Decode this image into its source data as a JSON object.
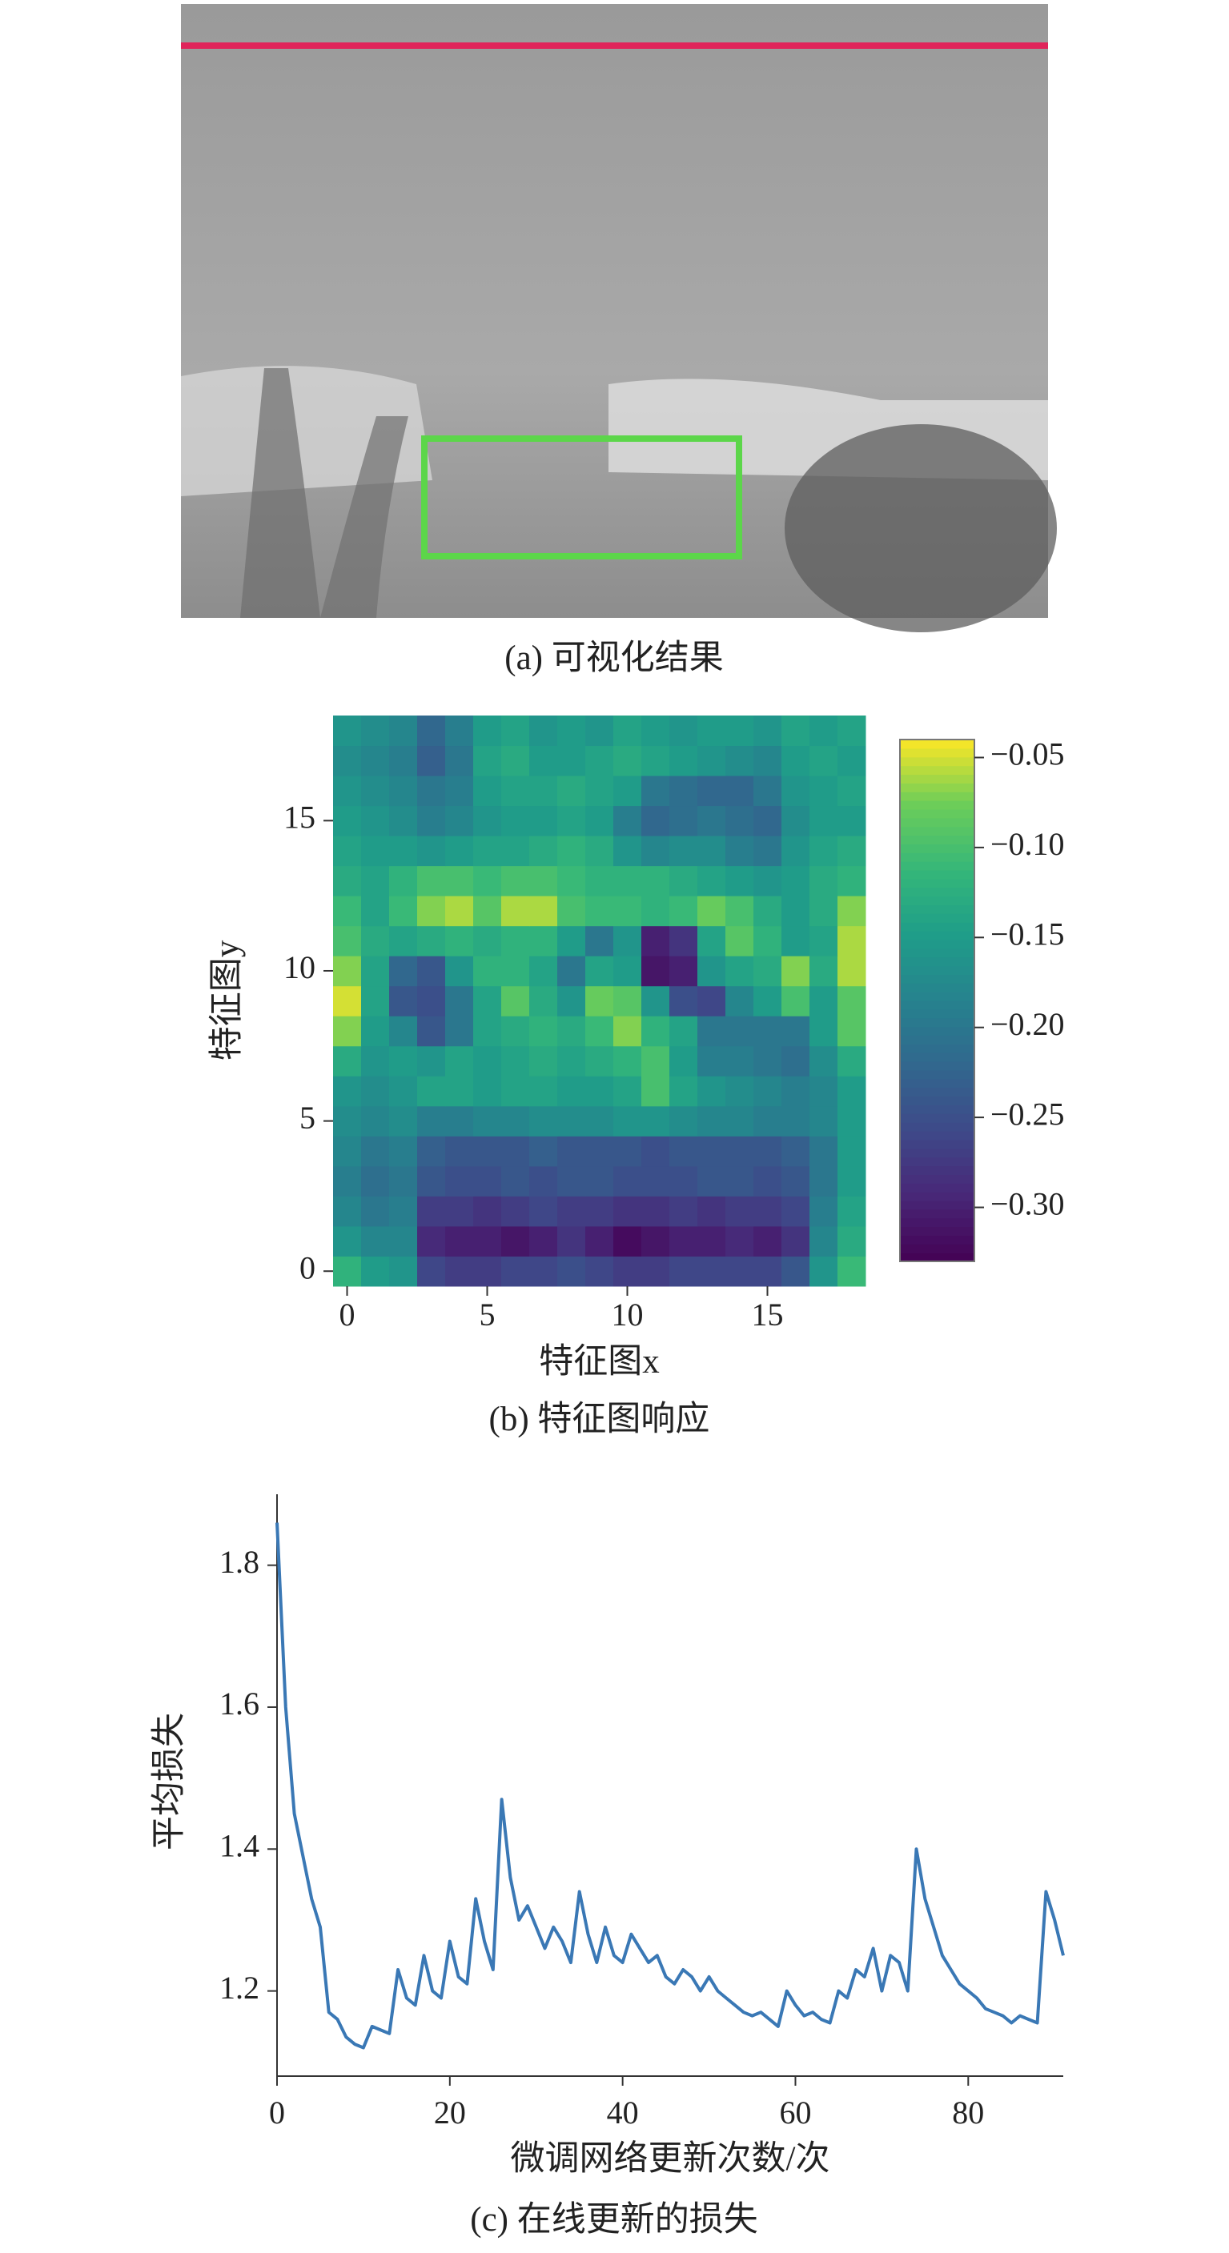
{
  "panel_a": {
    "caption": "(a) 可视化结果"
  },
  "chart_data": [
    {
      "type": "heatmap",
      "caption": "(b) 特征图响应",
      "xlabel": "特征图x",
      "ylabel": "特征图y",
      "colormap": "viridis",
      "x": [
        0,
        1,
        2,
        3,
        4,
        5,
        6,
        7,
        8,
        9,
        10,
        11,
        12,
        13,
        14,
        15,
        16,
        17,
        18
      ],
      "y": [
        0,
        1,
        2,
        3,
        4,
        5,
        6,
        7,
        8,
        9,
        10,
        11,
        12,
        13,
        14,
        15,
        16,
        17,
        18
      ],
      "z": [
        [
          -0.12,
          -0.15,
          -0.16,
          -0.26,
          -0.27,
          -0.27,
          -0.26,
          -0.26,
          -0.25,
          -0.26,
          -0.27,
          -0.27,
          -0.26,
          -0.26,
          -0.26,
          -0.26,
          -0.24,
          -0.16,
          -0.11
        ],
        [
          -0.16,
          -0.18,
          -0.18,
          -0.29,
          -0.3,
          -0.3,
          -0.31,
          -0.3,
          -0.28,
          -0.3,
          -0.32,
          -0.31,
          -0.3,
          -0.3,
          -0.29,
          -0.3,
          -0.28,
          -0.18,
          -0.13
        ],
        [
          -0.18,
          -0.2,
          -0.19,
          -0.27,
          -0.27,
          -0.28,
          -0.27,
          -0.26,
          -0.27,
          -0.27,
          -0.28,
          -0.28,
          -0.27,
          -0.28,
          -0.27,
          -0.27,
          -0.26,
          -0.19,
          -0.14
        ],
        [
          -0.19,
          -0.21,
          -0.2,
          -0.24,
          -0.25,
          -0.25,
          -0.24,
          -0.25,
          -0.24,
          -0.24,
          -0.25,
          -0.25,
          -0.25,
          -0.24,
          -0.24,
          -0.25,
          -0.24,
          -0.2,
          -0.15
        ],
        [
          -0.18,
          -0.2,
          -0.19,
          -0.23,
          -0.24,
          -0.24,
          -0.24,
          -0.23,
          -0.24,
          -0.24,
          -0.24,
          -0.25,
          -0.24,
          -0.24,
          -0.24,
          -0.24,
          -0.23,
          -0.2,
          -0.15
        ],
        [
          -0.17,
          -0.18,
          -0.17,
          -0.19,
          -0.19,
          -0.18,
          -0.18,
          -0.17,
          -0.17,
          -0.17,
          -0.16,
          -0.16,
          -0.17,
          -0.18,
          -0.18,
          -0.19,
          -0.19,
          -0.18,
          -0.15
        ],
        [
          -0.16,
          -0.17,
          -0.16,
          -0.14,
          -0.14,
          -0.15,
          -0.14,
          -0.14,
          -0.15,
          -0.15,
          -0.14,
          -0.1,
          -0.14,
          -0.16,
          -0.17,
          -0.18,
          -0.19,
          -0.18,
          -0.15
        ],
        [
          -0.13,
          -0.16,
          -0.15,
          -0.16,
          -0.14,
          -0.15,
          -0.14,
          -0.13,
          -0.14,
          -0.13,
          -0.12,
          -0.1,
          -0.15,
          -0.19,
          -0.19,
          -0.2,
          -0.21,
          -0.17,
          -0.13
        ],
        [
          -0.07,
          -0.15,
          -0.18,
          -0.24,
          -0.2,
          -0.14,
          -0.13,
          -0.12,
          -0.13,
          -0.11,
          -0.07,
          -0.12,
          -0.14,
          -0.2,
          -0.2,
          -0.2,
          -0.2,
          -0.15,
          -0.09
        ],
        [
          -0.05,
          -0.14,
          -0.24,
          -0.25,
          -0.2,
          -0.14,
          -0.09,
          -0.13,
          -0.16,
          -0.08,
          -0.09,
          -0.16,
          -0.25,
          -0.26,
          -0.18,
          -0.15,
          -0.1,
          -0.15,
          -0.09
        ],
        [
          -0.07,
          -0.14,
          -0.22,
          -0.24,
          -0.16,
          -0.12,
          -0.12,
          -0.14,
          -0.2,
          -0.14,
          -0.15,
          -0.31,
          -0.3,
          -0.16,
          -0.14,
          -0.13,
          -0.07,
          -0.13,
          -0.06
        ],
        [
          -0.1,
          -0.13,
          -0.14,
          -0.13,
          -0.12,
          -0.13,
          -0.12,
          -0.12,
          -0.15,
          -0.2,
          -0.16,
          -0.3,
          -0.28,
          -0.14,
          -0.09,
          -0.12,
          -0.15,
          -0.14,
          -0.06
        ],
        [
          -0.11,
          -0.14,
          -0.11,
          -0.07,
          -0.06,
          -0.09,
          -0.06,
          -0.06,
          -0.1,
          -0.11,
          -0.11,
          -0.12,
          -0.11,
          -0.08,
          -0.1,
          -0.13,
          -0.15,
          -0.13,
          -0.07
        ],
        [
          -0.13,
          -0.14,
          -0.12,
          -0.1,
          -0.1,
          -0.11,
          -0.1,
          -0.1,
          -0.11,
          -0.12,
          -0.12,
          -0.12,
          -0.13,
          -0.14,
          -0.15,
          -0.16,
          -0.15,
          -0.13,
          -0.12
        ],
        [
          -0.14,
          -0.15,
          -0.15,
          -0.16,
          -0.15,
          -0.14,
          -0.14,
          -0.13,
          -0.12,
          -0.13,
          -0.16,
          -0.18,
          -0.17,
          -0.17,
          -0.19,
          -0.2,
          -0.16,
          -0.14,
          -0.13
        ],
        [
          -0.15,
          -0.16,
          -0.17,
          -0.19,
          -0.18,
          -0.16,
          -0.15,
          -0.15,
          -0.14,
          -0.15,
          -0.19,
          -0.22,
          -0.21,
          -0.2,
          -0.21,
          -0.22,
          -0.17,
          -0.15,
          -0.15
        ],
        [
          -0.16,
          -0.17,
          -0.18,
          -0.2,
          -0.19,
          -0.15,
          -0.14,
          -0.14,
          -0.13,
          -0.14,
          -0.15,
          -0.2,
          -0.21,
          -0.22,
          -0.22,
          -0.2,
          -0.16,
          -0.15,
          -0.14
        ],
        [
          -0.17,
          -0.18,
          -0.19,
          -0.23,
          -0.2,
          -0.14,
          -0.13,
          -0.15,
          -0.15,
          -0.14,
          -0.13,
          -0.14,
          -0.15,
          -0.16,
          -0.17,
          -0.18,
          -0.15,
          -0.14,
          -0.15
        ],
        [
          -0.16,
          -0.17,
          -0.18,
          -0.22,
          -0.19,
          -0.15,
          -0.14,
          -0.16,
          -0.15,
          -0.16,
          -0.14,
          -0.15,
          -0.16,
          -0.15,
          -0.15,
          -0.16,
          -0.14,
          -0.15,
          -0.14
        ]
      ],
      "xlim": [
        -0.5,
        18.5
      ],
      "ylim": [
        -0.5,
        18.5
      ],
      "xticks": [
        0,
        5,
        10,
        15
      ],
      "yticks": [
        0,
        5,
        10,
        15
      ],
      "zlim": [
        -0.33,
        -0.04
      ],
      "zticks": [
        {
          "value": -0.05,
          "label": "−0.05"
        },
        {
          "value": -0.1,
          "label": "−0.10"
        },
        {
          "value": -0.15,
          "label": "−0.15"
        },
        {
          "value": -0.2,
          "label": "−0.20"
        },
        {
          "value": -0.25,
          "label": "−0.25"
        },
        {
          "value": -0.3,
          "label": "−0.30"
        }
      ]
    },
    {
      "type": "line",
      "caption": "(c) 在线更新的损失",
      "xlabel": "微调网络更新次数/次",
      "ylabel": "平均损失",
      "color": "#3a78b5",
      "x": [
        0,
        1,
        2,
        3,
        4,
        5,
        6,
        7,
        8,
        9,
        10,
        11,
        12,
        13,
        14,
        15,
        16,
        17,
        18,
        19,
        20,
        21,
        22,
        23,
        24,
        25,
        26,
        27,
        28,
        29,
        30,
        31,
        32,
        33,
        34,
        35,
        36,
        37,
        38,
        39,
        40,
        41,
        42,
        43,
        44,
        45,
        46,
        47,
        48,
        49,
        50,
        51,
        52,
        53,
        54,
        55,
        56,
        57,
        58,
        59,
        60,
        61,
        62,
        63,
        64,
        65,
        66,
        67,
        68,
        69,
        70,
        71,
        72,
        73,
        74,
        75,
        76,
        77,
        78,
        79,
        80,
        81,
        82,
        83,
        84,
        85,
        86,
        87,
        88,
        89,
        90,
        91
      ],
      "values": [
        1.86,
        1.6,
        1.45,
        1.39,
        1.33,
        1.29,
        1.17,
        1.16,
        1.135,
        1.125,
        1.12,
        1.15,
        1.145,
        1.14,
        1.23,
        1.19,
        1.18,
        1.25,
        1.2,
        1.19,
        1.27,
        1.22,
        1.21,
        1.33,
        1.27,
        1.23,
        1.47,
        1.36,
        1.3,
        1.32,
        1.29,
        1.26,
        1.29,
        1.27,
        1.24,
        1.34,
        1.28,
        1.24,
        1.29,
        1.25,
        1.24,
        1.28,
        1.26,
        1.24,
        1.25,
        1.22,
        1.21,
        1.23,
        1.22,
        1.2,
        1.22,
        1.2,
        1.19,
        1.18,
        1.17,
        1.165,
        1.17,
        1.16,
        1.15,
        1.2,
        1.18,
        1.165,
        1.17,
        1.16,
        1.155,
        1.2,
        1.19,
        1.23,
        1.22,
        1.26,
        1.2,
        1.25,
        1.24,
        1.2,
        1.4,
        1.33,
        1.29,
        1.25,
        1.23,
        1.21,
        1.2,
        1.19,
        1.175,
        1.17,
        1.165,
        1.155,
        1.165,
        1.16,
        1.155,
        1.34,
        1.3,
        1.25
      ],
      "xlim": [
        0,
        91
      ],
      "ylim": [
        1.08,
        1.9
      ],
      "xticks": [
        0,
        20,
        40,
        60,
        80
      ],
      "yticks": [
        1.2,
        1.4,
        1.6,
        1.8
      ]
    }
  ]
}
